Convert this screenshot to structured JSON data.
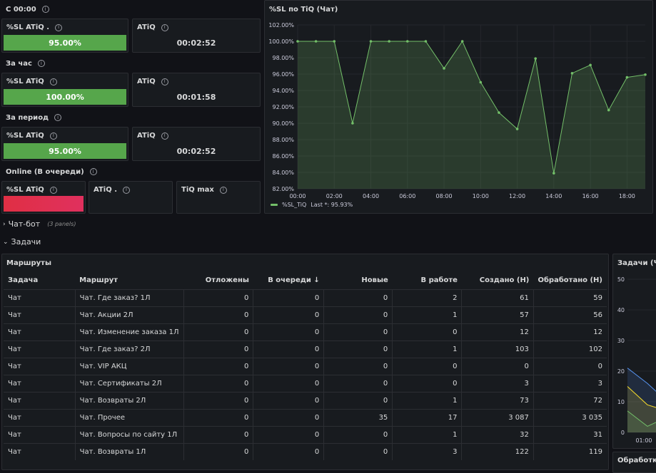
{
  "sections": {
    "s1": "С 00:00",
    "s2": "За час",
    "s3": "За период",
    "s4": "Online (В очереди)"
  },
  "stats": {
    "r1": {
      "sl_title": "%SL ATiQ .",
      "sl_value": "95.00%",
      "sl_pct": 95,
      "atiq_title": "ATiQ",
      "atiq_value": "00:02:52"
    },
    "r2": {
      "sl_title": "%SL ATiQ",
      "sl_value": "100.00%",
      "sl_pct": 100,
      "atiq_title": "ATiQ",
      "atiq_value": "00:01:58"
    },
    "r3": {
      "sl_title": "%SL ATiQ",
      "sl_value": "95.00%",
      "sl_pct": 95,
      "atiq_title": "ATiQ",
      "atiq_value": "00:02:52"
    },
    "r4": {
      "sl_title": "%SL ATiQ",
      "atiq_title": "ATiQ .",
      "tiqmax_title": "TiQ max"
    }
  },
  "colors": {
    "bg": "#111217",
    "panel": "#181b1f",
    "green": "#56a64b",
    "green_light": "#73bf69",
    "red": "#e02f44"
  },
  "chart_data": [
    {
      "type": "area",
      "title": "%SL по TiQ (Чат)",
      "x": [
        "00:00",
        "01:00",
        "02:00",
        "03:00",
        "04:00",
        "05:00",
        "06:00",
        "07:00",
        "08:00",
        "09:00",
        "10:00",
        "11:00",
        "12:00",
        "13:00",
        "14:00",
        "15:00",
        "16:00",
        "17:00",
        "18:00",
        "19:00"
      ],
      "x_tick_labels": [
        "00:00",
        "02:00",
        "04:00",
        "06:00",
        "08:00",
        "10:00",
        "12:00",
        "14:00",
        "16:00",
        "18:00"
      ],
      "series": [
        {
          "name": "%SL_TiQ",
          "values": [
            100,
            100,
            100,
            90,
            100,
            100,
            100,
            100,
            96.7,
            100,
            95,
            91.3,
            89.3,
            97.9,
            83.9,
            96.1,
            97.1,
            91.6,
            95.6,
            95.93
          ],
          "color": "#73bf69"
        }
      ],
      "legend_text": "Last *: 95.93%",
      "y_tick_labels": [
        "102.00%",
        "100.00%",
        "98.00%",
        "96.00%",
        "94.00%",
        "92.00%",
        "90.00%",
        "88.00%",
        "86.00%",
        "84.00%",
        "82.00%"
      ],
      "ylim": [
        82,
        102
      ],
      "grid": true,
      "legend_position": "bottom-left"
    },
    {
      "type": "area",
      "title": "Задачи (Чат",
      "y_tick_labels": [
        "50",
        "40",
        "30",
        "20",
        "10",
        "0"
      ],
      "x_tick_labels": [
        "01:00"
      ],
      "ylim": [
        0,
        50
      ],
      "series": [
        {
          "values": [
            21,
            16,
            10
          ],
          "color": "#5794f2"
        },
        {
          "values": [
            15,
            9,
            7
          ],
          "color": "#fade2a"
        },
        {
          "values": [
            7,
            2,
            5
          ],
          "color": "#73bf69"
        }
      ]
    }
  ],
  "rows": {
    "chatbot": {
      "label": "Чат-бот",
      "note": "(3 panels)"
    },
    "tasks": {
      "label": "Задачи"
    }
  },
  "routes": {
    "title": "Маршруты",
    "columns": [
      "Задача",
      "Маршрут",
      "Отложены",
      "В очереди",
      "Новые",
      "В работе",
      "Создано (Н)",
      "Обработано (Н)"
    ],
    "rows": [
      [
        "Чат",
        "Чат. Где заказ? 1Л",
        "0",
        "0",
        "0",
        "2",
        "61",
        "59"
      ],
      [
        "Чат",
        "Чат. Акции 2Л",
        "0",
        "0",
        "0",
        "1",
        "57",
        "56"
      ],
      [
        "Чат",
        "Чат. Изменение заказа 1Л",
        "0",
        "0",
        "0",
        "0",
        "12",
        "12"
      ],
      [
        "Чат",
        "Чат. Где заказ? 2Л",
        "0",
        "0",
        "0",
        "1",
        "103",
        "102"
      ],
      [
        "Чат",
        "Чат. VIP АКЦ",
        "0",
        "0",
        "0",
        "0",
        "0",
        "0"
      ],
      [
        "Чат",
        "Чат. Сертификаты 2Л",
        "0",
        "0",
        "0",
        "0",
        "3",
        "3"
      ],
      [
        "Чат",
        "Чат. Возвраты 2Л",
        "0",
        "0",
        "0",
        "1",
        "73",
        "72"
      ],
      [
        "Чат",
        "Чат. Прочее",
        "0",
        "0",
        "35",
        "17",
        "3 087",
        "3 035"
      ],
      [
        "Чат",
        "Чат. Вопросы по сайту 1Л",
        "0",
        "0",
        "0",
        "1",
        "32",
        "31"
      ],
      [
        "Чат",
        "Чат. Возвраты 1Л",
        "0",
        "0",
        "0",
        "3",
        "122",
        "119"
      ]
    ]
  },
  "processing": {
    "title": "Обработка"
  }
}
